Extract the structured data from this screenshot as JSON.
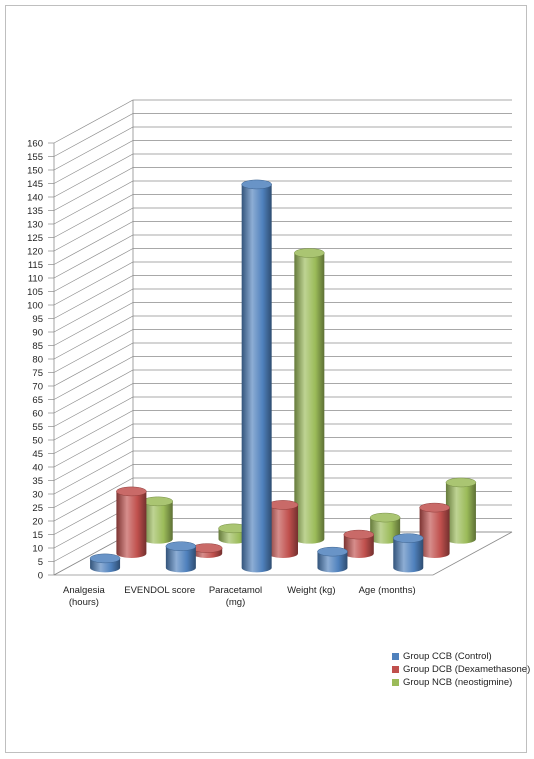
{
  "chart_data": {
    "type": "bar",
    "variant": "3d-cylinder",
    "title": "",
    "xlabel": "",
    "ylabel": "",
    "ylim": [
      0,
      160
    ],
    "y_ticks": [
      "0",
      "5",
      "10",
      "15",
      "20",
      "25",
      "30",
      "35",
      "40",
      "45",
      "50",
      "55",
      "60",
      "65",
      "70",
      "75",
      "80",
      "85",
      "90",
      "95",
      "100",
      "105",
      "110",
      "115",
      "120",
      "125",
      "130",
      "135",
      "140",
      "145",
      "150",
      "155",
      "160"
    ],
    "categories": [
      {
        "line1": "Analgesia",
        "line2": "(hours)"
      },
      {
        "line1": "EVENDOL score",
        "line2": ""
      },
      {
        "line1": "Paracetamol",
        "line2": "(mg)"
      },
      {
        "line1": "Weight (kg)",
        "line2": ""
      },
      {
        "line1": "Age (months)",
        "line2": ""
      }
    ],
    "series": [
      {
        "name": "Group CCB (Control)",
        "color": "#4f81bd",
        "values": [
          3.5,
          8,
          142,
          6,
          11
        ]
      },
      {
        "name": "Group DCB (Dexamethasone)",
        "color": "#c0504d",
        "values": [
          23,
          2,
          18,
          7,
          17
        ]
      },
      {
        "name": "Group NCB (neostigmine)",
        "color": "#9bbb59",
        "values": [
          14,
          4,
          106,
          8,
          21
        ]
      }
    ],
    "grid": true,
    "legend_position": "bottom-right"
  }
}
